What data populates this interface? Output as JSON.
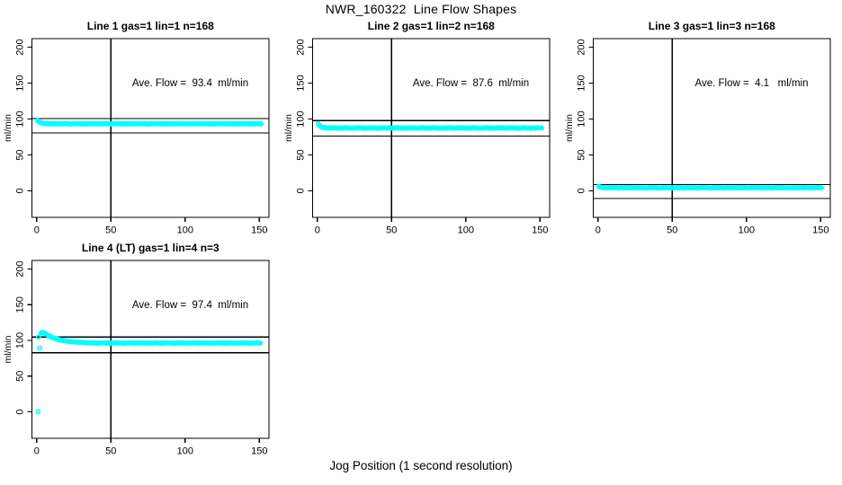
{
  "figure_title": "NWR_160322  Line Flow Shapes",
  "x_axis_label": "Jog Position (1 second resolution)",
  "colors": {
    "marker": "#00FFFF",
    "axis": "#000000",
    "background": "#FFFFFF"
  },
  "chart_data": [
    {
      "type": "scatter",
      "title": "Line 1 gas=1 lin=1 n=168",
      "gas": 1,
      "lin": 1,
      "n": 168,
      "annotation": "Ave. Flow =  93.4  ml/min",
      "ave_flow_ml_min": 93.4,
      "ylabel": "ml/min",
      "xticks": [
        0,
        50,
        100,
        150
      ],
      "yticks": [
        0,
        50,
        100,
        150,
        200
      ],
      "xlim": [
        -3.2,
        156.5
      ],
      "ylim": [
        -37,
        212
      ],
      "grid": false,
      "vline_x": 50,
      "hlines": [
        100.7,
        80.5
      ],
      "series": {
        "transition": [
          [
            0.7,
            97.6
          ],
          [
            1.5,
            96.3
          ],
          [
            2,
            95.6
          ],
          [
            2.5,
            95.1
          ],
          [
            3,
            94.7
          ],
          [
            4,
            94.1
          ],
          [
            5,
            93.8
          ],
          [
            6,
            93.6
          ],
          [
            7,
            93.5
          ],
          [
            8,
            93.4
          ],
          [
            10,
            93.35
          ]
        ],
        "flat": {
          "from": 10.9,
          "to": 151.5,
          "step": 0.9,
          "y": 93.3,
          "jitter": 0.5
        },
        "outliers": []
      },
      "col": 0,
      "row": 0
    },
    {
      "type": "scatter",
      "title": "Line 2 gas=1 lin=2 n=168",
      "gas": 1,
      "lin": 2,
      "n": 168,
      "annotation": "Ave. Flow =  87.6  ml/min",
      "ave_flow_ml_min": 87.6,
      "ylabel": "ml/min",
      "xticks": [
        0,
        50,
        100,
        150
      ],
      "yticks": [
        0,
        50,
        100,
        150,
        200
      ],
      "xlim": [
        -3.2,
        156.5
      ],
      "ylim": [
        -37,
        212
      ],
      "grid": false,
      "vline_x": 50,
      "hlines": [
        97.8,
        76.3
      ],
      "series": {
        "transition": [
          [
            0.7,
            93.2
          ],
          [
            1.5,
            91.0
          ],
          [
            2,
            90.0
          ],
          [
            2.5,
            89.3
          ],
          [
            3,
            88.8
          ],
          [
            4,
            88.3
          ],
          [
            5,
            88.0
          ],
          [
            6,
            87.8
          ],
          [
            8,
            87.65
          ]
        ],
        "flat": {
          "from": 8.9,
          "to": 151.5,
          "step": 0.9,
          "y": 87.5,
          "jitter": 0.5
        },
        "outliers": []
      },
      "col": 1,
      "row": 0
    },
    {
      "type": "scatter",
      "title": "Line 3 gas=1 lin=3 n=168",
      "gas": 1,
      "lin": 3,
      "n": 168,
      "annotation": "Ave. Flow =  4.1   ml/min",
      "ave_flow_ml_min": 4.1,
      "ylabel": "ml/min",
      "xticks": [
        0,
        50,
        100,
        150
      ],
      "yticks": [
        0,
        50,
        100,
        150,
        200
      ],
      "xlim": [
        -3.2,
        156.5
      ],
      "ylim": [
        -37,
        212
      ],
      "grid": false,
      "vline_x": 50,
      "hlines": [
        8.7,
        -10.8
      ],
      "series": {
        "transition": [
          [
            0.5,
            6.3
          ],
          [
            1,
            5.6
          ],
          [
            1.5,
            5.1
          ],
          [
            2,
            4.8
          ],
          [
            3,
            4.5
          ]
        ],
        "flat": {
          "from": 3.9,
          "to": 151.5,
          "step": 0.9,
          "y": 4.2,
          "jitter": 0.45
        },
        "outliers": []
      },
      "col": 2,
      "row": 0
    },
    {
      "type": "scatter",
      "title": "Line 4 (LT) gas=1 lin=4 n=3",
      "gas": 1,
      "lin": 4,
      "n": 3,
      "annotation": "Ave. Flow =  97.4  ml/min",
      "ave_flow_ml_min": 97.4,
      "ylabel": "ml/min",
      "xticks": [
        0,
        50,
        100,
        150
      ],
      "yticks": [
        0,
        50,
        100,
        150,
        200
      ],
      "xlim": [
        -3.2,
        156.5
      ],
      "ylim": [
        -37,
        212
      ],
      "grid": false,
      "vline_x": 50,
      "hlines": [
        104.9,
        82.9
      ],
      "series": {
        "transition": [
          [
            3,
            110.3
          ],
          [
            3.5,
            111.0
          ],
          [
            4,
            111.2
          ],
          [
            5,
            110.6
          ],
          [
            6,
            109.4
          ],
          [
            7,
            108.1
          ],
          [
            8,
            106.9
          ],
          [
            9,
            105.8
          ],
          [
            10,
            104.8
          ],
          [
            11,
            103.9
          ],
          [
            12,
            103.1
          ],
          [
            13,
            102.4
          ],
          [
            14,
            101.8
          ],
          [
            15,
            101.2
          ],
          [
            16,
            100.7
          ],
          [
            18,
            99.9
          ],
          [
            20,
            99.2
          ],
          [
            22,
            98.7
          ],
          [
            24,
            98.2
          ],
          [
            26,
            97.8
          ],
          [
            28,
            97.5
          ],
          [
            31,
            97.1
          ],
          [
            34,
            96.8
          ],
          [
            37,
            96.6
          ],
          [
            40,
            96.5
          ]
        ],
        "flat": {
          "from": 40.9,
          "to": 151.5,
          "step": 0.9,
          "y": 96.4,
          "jitter": 0.6
        },
        "outliers": [
          [
            1,
            0.3
          ],
          [
            1.2,
            104.6
          ],
          [
            2,
            89.3
          ]
        ]
      },
      "col": 0,
      "row": 1
    }
  ]
}
